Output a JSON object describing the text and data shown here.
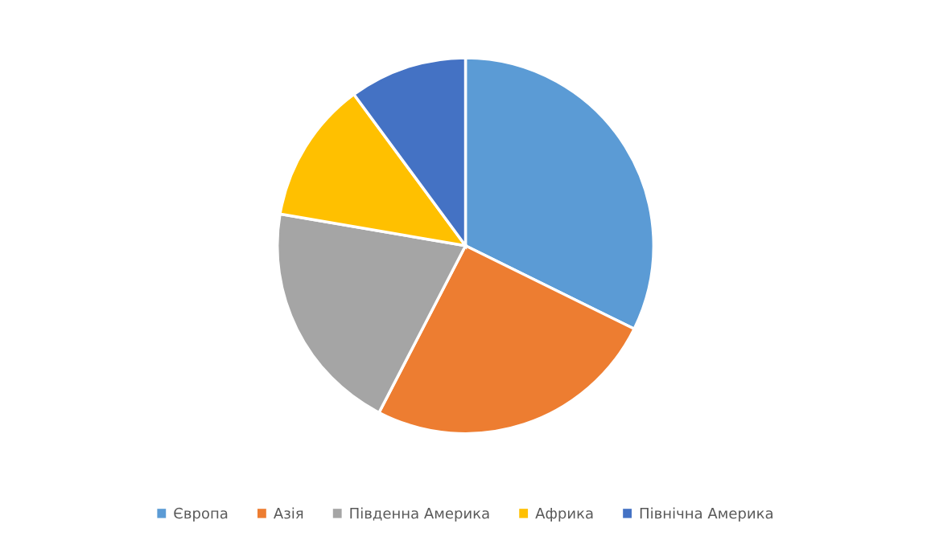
{
  "chart_data": {
    "type": "pie",
    "categories": [
      "Європа",
      "Азія",
      "Південна Америка",
      "Африка",
      "Північна Америка"
    ],
    "values": [
      32.3,
      25.3,
      20.1,
      12.2,
      10.1
    ],
    "colors": [
      "#5b9bd5",
      "#ed7d31",
      "#a5a5a5",
      "#ffc000",
      "#4472c4"
    ],
    "legend": "bottom"
  }
}
